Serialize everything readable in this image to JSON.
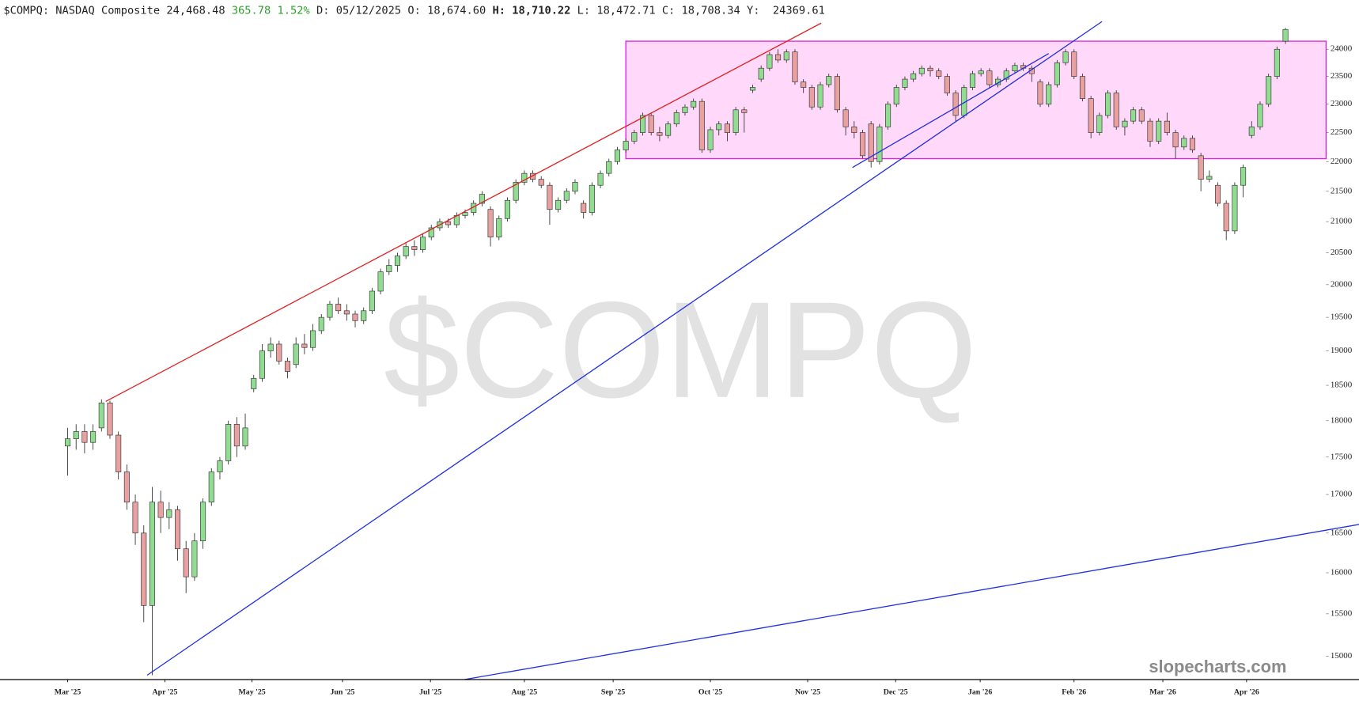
{
  "header": {
    "symbol": "$COMPQ: NASDAQ Composite",
    "last": "24,468.48",
    "change": "365.78",
    "change_pct": "1.52%",
    "date": "D: 05/12/2025",
    "open": "O: 18,674.60",
    "high_label": "H:",
    "high": "18,710.22",
    "low": "L: 18,472.71",
    "close": "C: 18,708.34",
    "y": "Y:  24369.61"
  },
  "chart_data": {
    "type": "candlestick",
    "watermark": "$COMPQ",
    "brand": "slopecharts.com",
    "log_scale": true,
    "up_color": "#90dc90",
    "down_color": "#e8a0a0",
    "xlim": [
      -8,
      148.8
    ],
    "ylim": [
      14730,
      24600
    ],
    "yticks": [
      15000,
      15500,
      16000,
      16500,
      17000,
      17500,
      18000,
      18500,
      19000,
      19500,
      20000,
      20500,
      21000,
      21500,
      22000,
      22500,
      23000,
      23500,
      24000
    ],
    "xticks": [
      {
        "value": 0,
        "label": "Mar '25"
      },
      {
        "value": 11.5,
        "label": "Apr '25"
      },
      {
        "value": 21.8,
        "label": "May '25"
      },
      {
        "value": 32.5,
        "label": "Jun '25"
      },
      {
        "value": 42.9,
        "label": "Jul '25"
      },
      {
        "value": 54,
        "label": "Aug '25"
      },
      {
        "value": 64.5,
        "label": "Sep '25"
      },
      {
        "value": 76,
        "label": "Oct '25"
      },
      {
        "value": 87.5,
        "label": "Nov '25"
      },
      {
        "value": 97.9,
        "label": "Dec '25"
      },
      {
        "value": 107.9,
        "label": "Jan '26"
      },
      {
        "value": 119,
        "label": "Feb '26"
      },
      {
        "value": 129.5,
        "label": "Mar '26"
      },
      {
        "value": 139.4,
        "label": "Apr '26"
      }
    ],
    "zone": {
      "color": "#e020e0",
      "fill": "#ffd8fa",
      "x": [
        66,
        148.8
      ],
      "y": [
        22050,
        24150
      ]
    },
    "trendlines": [
      {
        "color": "#e02020",
        "points": [
          [
            4.5,
            18270
          ],
          [
            89.1,
            24490
          ]
        ]
      },
      {
        "color": "#2030e0",
        "points": [
          [
            9.4,
            14780
          ],
          [
            122.3,
            24520
          ]
        ]
      },
      {
        "color": "#2030e0",
        "points": [
          [
            92.8,
            21900
          ],
          [
            116,
            23920
          ]
        ]
      },
      {
        "color": "#2030e0",
        "points": [
          [
            46.9,
            14730
          ],
          [
            152.7,
            16610
          ]
        ]
      }
    ],
    "candles": [
      [
        17650,
        17900,
        17250,
        17750
      ],
      [
        17750,
        17950,
        17600,
        17850
      ],
      [
        17850,
        17950,
        17550,
        17700
      ],
      [
        17700,
        17950,
        17600,
        17850
      ],
      [
        17900,
        18300,
        17850,
        18250
      ],
      [
        18250,
        18280,
        17750,
        17800
      ],
      [
        17800,
        17850,
        17200,
        17300
      ],
      [
        17300,
        17400,
        16800,
        16900
      ],
      [
        16900,
        17000,
        16350,
        16500
      ],
      [
        16500,
        16600,
        15400,
        15600
      ],
      [
        15600,
        17100,
        14780,
        16900
      ],
      [
        16900,
        17050,
        16500,
        16700
      ],
      [
        16700,
        16900,
        16550,
        16800
      ],
      [
        16800,
        16850,
        16150,
        16300
      ],
      [
        16300,
        16400,
        15750,
        15950
      ],
      [
        15950,
        16500,
        15900,
        16400
      ],
      [
        16400,
        16950,
        16300,
        16900
      ],
      [
        16900,
        17350,
        16850,
        17300
      ],
      [
        17300,
        17500,
        17200,
        17450
      ],
      [
        17450,
        18000,
        17400,
        17950
      ],
      [
        17950,
        18050,
        17500,
        17650
      ],
      [
        17650,
        18100,
        17600,
        17900
      ],
      [
        18450,
        18650,
        18400,
        18600
      ],
      [
        18600,
        19100,
        18550,
        19000
      ],
      [
        19000,
        19200,
        18900,
        19100
      ],
      [
        19100,
        19150,
        18800,
        18850
      ],
      [
        18850,
        18900,
        18600,
        18700
      ],
      [
        18800,
        19200,
        18750,
        19100
      ],
      [
        19100,
        19250,
        18950,
        19050
      ],
      [
        19050,
        19400,
        19000,
        19300
      ],
      [
        19300,
        19550,
        19250,
        19500
      ],
      [
        19500,
        19750,
        19450,
        19700
      ],
      [
        19700,
        19800,
        19550,
        19600
      ],
      [
        19600,
        19700,
        19450,
        19550
      ],
      [
        19550,
        19600,
        19350,
        19450
      ],
      [
        19450,
        19650,
        19400,
        19600
      ],
      [
        19600,
        19950,
        19550,
        19900
      ],
      [
        19900,
        20250,
        19850,
        20200
      ],
      [
        20200,
        20400,
        20150,
        20300
      ],
      [
        20300,
        20500,
        20200,
        20450
      ],
      [
        20450,
        20650,
        20400,
        20600
      ],
      [
        20600,
        20700,
        20450,
        20550
      ],
      [
        20550,
        20800,
        20500,
        20750
      ],
      [
        20750,
        20950,
        20700,
        20900
      ],
      [
        20900,
        21050,
        20850,
        21000
      ],
      [
        21000,
        21050,
        20900,
        20950
      ],
      [
        20950,
        21150,
        20900,
        21100
      ],
      [
        21100,
        21200,
        21050,
        21150
      ],
      [
        21150,
        21350,
        21100,
        21300
      ],
      [
        21300,
        21500,
        21250,
        21450
      ],
      [
        21200,
        21250,
        20600,
        20750
      ],
      [
        20750,
        21100,
        20700,
        21050
      ],
      [
        21050,
        21400,
        21000,
        21350
      ],
      [
        21350,
        21700,
        21300,
        21650
      ],
      [
        21650,
        21850,
        21600,
        21800
      ],
      [
        21800,
        21850,
        21650,
        21700
      ],
      [
        21700,
        21750,
        21550,
        21600
      ],
      [
        21600,
        21650,
        20950,
        21200
      ],
      [
        21200,
        21400,
        21150,
        21350
      ],
      [
        21350,
        21550,
        21300,
        21500
      ],
      [
        21500,
        21700,
        21450,
        21650
      ],
      [
        21300,
        21350,
        21050,
        21150
      ],
      [
        21150,
        21650,
        21100,
        21600
      ],
      [
        21600,
        21850,
        21550,
        21800
      ],
      [
        21800,
        22050,
        21750,
        22000
      ],
      [
        22000,
        22250,
        21950,
        22200
      ],
      [
        22200,
        22400,
        22150,
        22350
      ],
      [
        22350,
        22550,
        22300,
        22500
      ],
      [
        22500,
        22850,
        22450,
        22800
      ],
      [
        22800,
        22850,
        22450,
        22500
      ],
      [
        22500,
        22600,
        22350,
        22450
      ],
      [
        22450,
        22700,
        22400,
        22650
      ],
      [
        22650,
        22900,
        22600,
        22850
      ],
      [
        22850,
        23000,
        22800,
        22950
      ],
      [
        22950,
        23100,
        22900,
        23050
      ],
      [
        23050,
        23100,
        22150,
        22200
      ],
      [
        22200,
        22600,
        22150,
        22550
      ],
      [
        22550,
        22700,
        22450,
        22650
      ],
      [
        22650,
        22700,
        22350,
        22500
      ],
      [
        22500,
        22950,
        22450,
        22900
      ],
      [
        22900,
        22950,
        22500,
        22850
      ],
      [
        23250,
        23350,
        23200,
        23300
      ],
      [
        23450,
        23700,
        23400,
        23650
      ],
      [
        23650,
        23950,
        23600,
        23900
      ],
      [
        23900,
        24000,
        23750,
        23800
      ],
      [
        23800,
        24000,
        23750,
        23950
      ],
      [
        23950,
        24000,
        23350,
        23400
      ],
      [
        23400,
        23450,
        23200,
        23300
      ],
      [
        23300,
        23350,
        22900,
        22950
      ],
      [
        22950,
        23400,
        22900,
        23350
      ],
      [
        23350,
        23550,
        23300,
        23500
      ],
      [
        23500,
        23550,
        22850,
        22900
      ],
      [
        22900,
        22950,
        22450,
        22600
      ],
      [
        22600,
        22700,
        22400,
        22500
      ],
      [
        22500,
        22550,
        22050,
        22100
      ],
      [
        22650,
        22700,
        21900,
        22000
      ],
      [
        22000,
        22650,
        21950,
        22600
      ],
      [
        22600,
        23050,
        22550,
        23000
      ],
      [
        23000,
        23350,
        22950,
        23300
      ],
      [
        23300,
        23500,
        23250,
        23450
      ],
      [
        23450,
        23600,
        23400,
        23550
      ],
      [
        23550,
        23700,
        23500,
        23650
      ],
      [
        23650,
        23700,
        23500,
        23600
      ],
      [
        23600,
        23650,
        23450,
        23500
      ],
      [
        23500,
        23550,
        23150,
        23200
      ],
      [
        23200,
        23250,
        22700,
        22800
      ],
      [
        22800,
        23350,
        22750,
        23300
      ],
      [
        23300,
        23600,
        23250,
        23550
      ],
      [
        23550,
        23650,
        23500,
        23600
      ],
      [
        23600,
        23650,
        23300,
        23350
      ],
      [
        23350,
        23500,
        23300,
        23450
      ],
      [
        23450,
        23650,
        23400,
        23600
      ],
      [
        23600,
        23750,
        23550,
        23700
      ],
      [
        23700,
        23750,
        23600,
        23650
      ],
      [
        23650,
        23700,
        23400,
        23550
      ],
      [
        23400,
        23450,
        22950,
        23000
      ],
      [
        23000,
        23400,
        22950,
        23350
      ],
      [
        23350,
        23800,
        23300,
        23750
      ],
      [
        23750,
        24000,
        23700,
        23950
      ],
      [
        23950,
        24000,
        23450,
        23500
      ],
      [
        23500,
        23550,
        23050,
        23100
      ],
      [
        23100,
        23150,
        22400,
        22500
      ],
      [
        22500,
        22850,
        22450,
        22800
      ],
      [
        22800,
        23250,
        22750,
        23200
      ],
      [
        23200,
        23250,
        22550,
        22600
      ],
      [
        22600,
        22750,
        22450,
        22700
      ],
      [
        22700,
        22950,
        22650,
        22900
      ],
      [
        22900,
        22950,
        22650,
        22700
      ],
      [
        22700,
        22750,
        22250,
        22350
      ],
      [
        22350,
        22750,
        22300,
        22700
      ],
      [
        22700,
        22850,
        22450,
        22500
      ],
      [
        22500,
        22550,
        22050,
        22250
      ],
      [
        22250,
        22450,
        22200,
        22400
      ],
      [
        22400,
        22450,
        22150,
        22200
      ],
      [
        22100,
        22150,
        21500,
        21700
      ],
      [
        21700,
        21850,
        21650,
        21750
      ],
      [
        21600,
        21650,
        21250,
        21300
      ],
      [
        21300,
        21350,
        20700,
        20850
      ],
      [
        20850,
        21650,
        20800,
        21600
      ],
      [
        21600,
        21950,
        21400,
        21900
      ],
      [
        22450,
        22700,
        22400,
        22600
      ],
      [
        22600,
        23050,
        22550,
        23000
      ],
      [
        23000,
        23550,
        22950,
        23500
      ],
      [
        23500,
        24050,
        23450,
        24000
      ],
      [
        24150,
        24400,
        24100,
        24370
      ]
    ]
  }
}
